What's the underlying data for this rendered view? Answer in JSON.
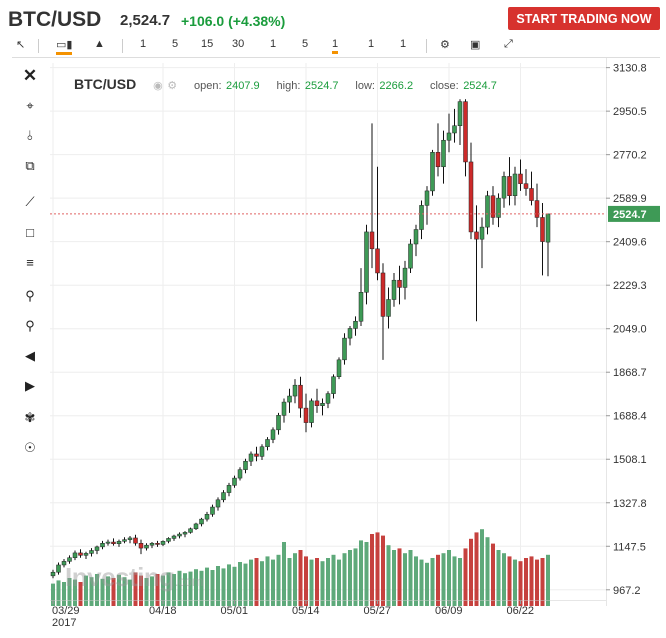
{
  "header": {
    "symbol": "BTC/USD",
    "price": "2,524.7",
    "change": "+106.0 (+4.38%)",
    "cta_label": "START TRADING NOW"
  },
  "toolbar": {
    "intervals": [
      "1",
      "5",
      "15",
      "30",
      "1",
      "5",
      "1",
      "1",
      "1"
    ],
    "active_interval_index": 6
  },
  "legend": {
    "symbol": "BTC/USD",
    "open_label": "open:",
    "open": "2407.9",
    "high_label": "high:",
    "high": "2524.7",
    "low_label": "low:",
    "low": "2266.2",
    "close_label": "close:",
    "close": "2524.7"
  },
  "watermark": {
    "text": "Investing",
    "suffix": ".com"
  },
  "colors": {
    "up": "#3e9a56",
    "down": "#cc2a2a",
    "up_vol": "#5ea97a",
    "down_vol": "#c6413e",
    "cta": "#d7322e",
    "change": "#1a9c3c",
    "active_tab": "#f49200"
  },
  "chart_data": {
    "type": "candlestick",
    "title": "BTC/USD",
    "y_ticks": [
      "3130.8",
      "2950.5",
      "2770.2",
      "2589.9",
      "2409.6",
      "2229.3",
      "2049.0",
      "1868.7",
      "1688.4",
      "1508.1",
      "1327.8",
      "1147.5",
      "967.2"
    ],
    "ylim": [
      900,
      3150
    ],
    "x_tick_labels": [
      "03/29",
      "04/18",
      "05/01",
      "05/14",
      "05/27",
      "06/09",
      "06/22"
    ],
    "x_tick_year": "2017",
    "x_tick_index": [
      0,
      20,
      33,
      46,
      59,
      72,
      85
    ],
    "last_price_label": "2524.7",
    "last_price": 2524.7,
    "candles": [
      {
        "o": 1025,
        "h": 1050,
        "l": 1015,
        "c": 1040
      },
      {
        "o": 1040,
        "h": 1080,
        "l": 1030,
        "c": 1070
      },
      {
        "o": 1070,
        "h": 1095,
        "l": 1060,
        "c": 1085
      },
      {
        "o": 1085,
        "h": 1110,
        "l": 1075,
        "c": 1100
      },
      {
        "o": 1100,
        "h": 1130,
        "l": 1090,
        "c": 1120
      },
      {
        "o": 1120,
        "h": 1135,
        "l": 1100,
        "c": 1110
      },
      {
        "o": 1110,
        "h": 1125,
        "l": 1095,
        "c": 1118
      },
      {
        "o": 1118,
        "h": 1140,
        "l": 1105,
        "c": 1130
      },
      {
        "o": 1130,
        "h": 1150,
        "l": 1115,
        "c": 1145
      },
      {
        "o": 1145,
        "h": 1170,
        "l": 1135,
        "c": 1160
      },
      {
        "o": 1160,
        "h": 1175,
        "l": 1150,
        "c": 1165
      },
      {
        "o": 1165,
        "h": 1180,
        "l": 1150,
        "c": 1158
      },
      {
        "o": 1158,
        "h": 1175,
        "l": 1145,
        "c": 1168
      },
      {
        "o": 1168,
        "h": 1185,
        "l": 1160,
        "c": 1175
      },
      {
        "o": 1175,
        "h": 1190,
        "l": 1160,
        "c": 1182
      },
      {
        "o": 1182,
        "h": 1195,
        "l": 1150,
        "c": 1160
      },
      {
        "o": 1160,
        "h": 1175,
        "l": 1115,
        "c": 1140
      },
      {
        "o": 1140,
        "h": 1160,
        "l": 1130,
        "c": 1152
      },
      {
        "o": 1152,
        "h": 1165,
        "l": 1140,
        "c": 1160
      },
      {
        "o": 1160,
        "h": 1170,
        "l": 1145,
        "c": 1155
      },
      {
        "o": 1155,
        "h": 1172,
        "l": 1148,
        "c": 1168
      },
      {
        "o": 1168,
        "h": 1185,
        "l": 1160,
        "c": 1180
      },
      {
        "o": 1180,
        "h": 1195,
        "l": 1170,
        "c": 1190
      },
      {
        "o": 1190,
        "h": 1205,
        "l": 1180,
        "c": 1198
      },
      {
        "o": 1198,
        "h": 1210,
        "l": 1185,
        "c": 1205
      },
      {
        "o": 1205,
        "h": 1225,
        "l": 1200,
        "c": 1220
      },
      {
        "o": 1220,
        "h": 1245,
        "l": 1215,
        "c": 1240
      },
      {
        "o": 1240,
        "h": 1265,
        "l": 1230,
        "c": 1260
      },
      {
        "o": 1260,
        "h": 1290,
        "l": 1250,
        "c": 1280
      },
      {
        "o": 1280,
        "h": 1320,
        "l": 1270,
        "c": 1310
      },
      {
        "o": 1310,
        "h": 1350,
        "l": 1295,
        "c": 1340
      },
      {
        "o": 1340,
        "h": 1380,
        "l": 1330,
        "c": 1370
      },
      {
        "o": 1370,
        "h": 1410,
        "l": 1355,
        "c": 1400
      },
      {
        "o": 1400,
        "h": 1440,
        "l": 1390,
        "c": 1430
      },
      {
        "o": 1430,
        "h": 1475,
        "l": 1420,
        "c": 1465
      },
      {
        "o": 1465,
        "h": 1510,
        "l": 1450,
        "c": 1500
      },
      {
        "o": 1500,
        "h": 1540,
        "l": 1480,
        "c": 1530
      },
      {
        "o": 1530,
        "h": 1560,
        "l": 1500,
        "c": 1520
      },
      {
        "o": 1520,
        "h": 1570,
        "l": 1505,
        "c": 1560
      },
      {
        "o": 1560,
        "h": 1600,
        "l": 1545,
        "c": 1590
      },
      {
        "o": 1590,
        "h": 1640,
        "l": 1575,
        "c": 1630
      },
      {
        "o": 1630,
        "h": 1700,
        "l": 1610,
        "c": 1690
      },
      {
        "o": 1690,
        "h": 1760,
        "l": 1660,
        "c": 1745
      },
      {
        "o": 1745,
        "h": 1800,
        "l": 1700,
        "c": 1770
      },
      {
        "o": 1770,
        "h": 1840,
        "l": 1740,
        "c": 1815
      },
      {
        "o": 1815,
        "h": 1850,
        "l": 1680,
        "c": 1720
      },
      {
        "o": 1720,
        "h": 1780,
        "l": 1620,
        "c": 1660
      },
      {
        "o": 1660,
        "h": 1760,
        "l": 1640,
        "c": 1750
      },
      {
        "o": 1750,
        "h": 1800,
        "l": 1700,
        "c": 1730
      },
      {
        "o": 1730,
        "h": 1760,
        "l": 1690,
        "c": 1740
      },
      {
        "o": 1740,
        "h": 1790,
        "l": 1720,
        "c": 1780
      },
      {
        "o": 1780,
        "h": 1860,
        "l": 1760,
        "c": 1850
      },
      {
        "o": 1850,
        "h": 1930,
        "l": 1840,
        "c": 1920
      },
      {
        "o": 1920,
        "h": 2030,
        "l": 1900,
        "c": 2010
      },
      {
        "o": 2010,
        "h": 2060,
        "l": 1980,
        "c": 2050
      },
      {
        "o": 2050,
        "h": 2100,
        "l": 2020,
        "c": 2080
      },
      {
        "o": 2080,
        "h": 2300,
        "l": 2060,
        "c": 2200
      },
      {
        "o": 2200,
        "h": 2480,
        "l": 2150,
        "c": 2450
      },
      {
        "o": 2450,
        "h": 2900,
        "l": 2300,
        "c": 2380
      },
      {
        "o": 2380,
        "h": 2720,
        "l": 2250,
        "c": 2280
      },
      {
        "o": 2280,
        "h": 2320,
        "l": 1920,
        "c": 2100
      },
      {
        "o": 2100,
        "h": 2220,
        "l": 2050,
        "c": 2170
      },
      {
        "o": 2170,
        "h": 2280,
        "l": 2140,
        "c": 2250
      },
      {
        "o": 2250,
        "h": 2310,
        "l": 2150,
        "c": 2220
      },
      {
        "o": 2220,
        "h": 2330,
        "l": 2170,
        "c": 2300
      },
      {
        "o": 2300,
        "h": 2420,
        "l": 2280,
        "c": 2400
      },
      {
        "o": 2400,
        "h": 2480,
        "l": 2350,
        "c": 2460
      },
      {
        "o": 2460,
        "h": 2580,
        "l": 2420,
        "c": 2560
      },
      {
        "o": 2560,
        "h": 2640,
        "l": 2480,
        "c": 2620
      },
      {
        "o": 2620,
        "h": 2790,
        "l": 2600,
        "c": 2780
      },
      {
        "o": 2780,
        "h": 2900,
        "l": 2680,
        "c": 2720
      },
      {
        "o": 2720,
        "h": 2870,
        "l": 2650,
        "c": 2830
      },
      {
        "o": 2830,
        "h": 2940,
        "l": 2780,
        "c": 2860
      },
      {
        "o": 2860,
        "h": 2960,
        "l": 2820,
        "c": 2890
      },
      {
        "o": 2890,
        "h": 3000,
        "l": 2810,
        "c": 2990
      },
      {
        "o": 2990,
        "h": 3000,
        "l": 2680,
        "c": 2740
      },
      {
        "o": 2740,
        "h": 2820,
        "l": 2420,
        "c": 2450
      },
      {
        "o": 2450,
        "h": 2560,
        "l": 2080,
        "c": 2420
      },
      {
        "o": 2420,
        "h": 2510,
        "l": 2300,
        "c": 2470
      },
      {
        "o": 2470,
        "h": 2620,
        "l": 2440,
        "c": 2600
      },
      {
        "o": 2600,
        "h": 2640,
        "l": 2480,
        "c": 2510
      },
      {
        "o": 2510,
        "h": 2610,
        "l": 2470,
        "c": 2590
      },
      {
        "o": 2590,
        "h": 2700,
        "l": 2550,
        "c": 2680
      },
      {
        "o": 2680,
        "h": 2760,
        "l": 2560,
        "c": 2600
      },
      {
        "o": 2600,
        "h": 2720,
        "l": 2560,
        "c": 2690
      },
      {
        "o": 2690,
        "h": 2750,
        "l": 2620,
        "c": 2650
      },
      {
        "o": 2650,
        "h": 2710,
        "l": 2600,
        "c": 2630
      },
      {
        "o": 2630,
        "h": 2700,
        "l": 2560,
        "c": 2580
      },
      {
        "o": 2580,
        "h": 2650,
        "l": 2470,
        "c": 2510
      },
      {
        "o": 2510,
        "h": 2570,
        "l": 2270,
        "c": 2410
      },
      {
        "o": 2407.9,
        "h": 2524.7,
        "l": 2266.2,
        "c": 2524.7
      }
    ],
    "volume": [
      0.28,
      0.32,
      0.3,
      0.35,
      0.33,
      0.3,
      0.38,
      0.36,
      0.4,
      0.34,
      0.37,
      0.35,
      0.39,
      0.36,
      0.33,
      0.42,
      0.38,
      0.35,
      0.37,
      0.4,
      0.38,
      0.42,
      0.4,
      0.44,
      0.41,
      0.43,
      0.46,
      0.44,
      0.48,
      0.45,
      0.5,
      0.47,
      0.52,
      0.49,
      0.55,
      0.53,
      0.58,
      0.6,
      0.56,
      0.62,
      0.58,
      0.64,
      0.8,
      0.6,
      0.66,
      0.7,
      0.62,
      0.58,
      0.6,
      0.56,
      0.6,
      0.64,
      0.58,
      0.66,
      0.7,
      0.72,
      0.82,
      0.8,
      0.9,
      0.92,
      0.88,
      0.76,
      0.7,
      0.72,
      0.66,
      0.7,
      0.62,
      0.58,
      0.54,
      0.6,
      0.64,
      0.66,
      0.7,
      0.62,
      0.6,
      0.72,
      0.84,
      0.92,
      0.96,
      0.86,
      0.78,
      0.7,
      0.66,
      0.62,
      0.58,
      0.56,
      0.6,
      0.62,
      0.58,
      0.6,
      0.64,
      0.7
    ]
  }
}
